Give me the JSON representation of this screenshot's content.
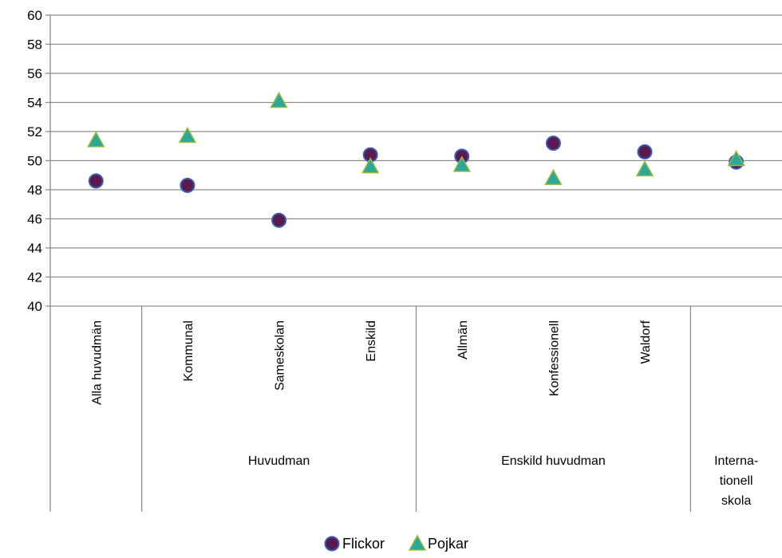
{
  "chart_data": {
    "type": "scatter",
    "ylim": [
      40,
      60
    ],
    "yticks": [
      40,
      42,
      44,
      46,
      48,
      50,
      52,
      54,
      56,
      58,
      60
    ],
    "grid": true,
    "legend_position": "bottom-center",
    "categories": [
      "Alla huvudmän",
      "Kommunal",
      "Sameskolan",
      "Enskild",
      "Allmän",
      "Konfessionell",
      "Waldorf",
      ""
    ],
    "groups": [
      {
        "label": "",
        "start": 0,
        "end": 0
      },
      {
        "label": "Huvudman",
        "start": 1,
        "end": 3
      },
      {
        "label": "Enskild huvudman",
        "start": 4,
        "end": 6
      },
      {
        "label": "Interna-\ntionell\nskola",
        "start": 7,
        "end": 7
      }
    ],
    "series": [
      {
        "name": "Flickor",
        "marker": "circle",
        "color": "#5b1a4f",
        "stroke": "#3a5fb0",
        "values": [
          48.6,
          48.3,
          45.9,
          50.4,
          50.3,
          51.2,
          50.6,
          49.9
        ]
      },
      {
        "name": "Pojkar",
        "marker": "triangle",
        "color": "#2aa89a",
        "stroke": "#9bbb3b",
        "values": [
          51.4,
          51.7,
          54.1,
          49.6,
          49.7,
          48.8,
          49.4,
          50.1
        ]
      }
    ]
  }
}
